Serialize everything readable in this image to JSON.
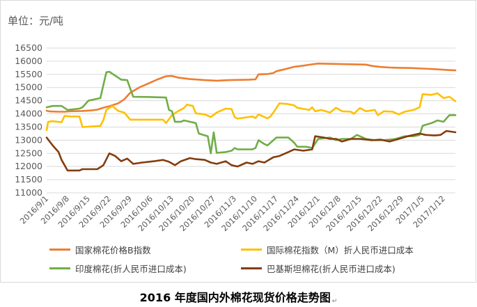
{
  "chart_data": {
    "type": "line",
    "y_unit_label": "单位：元/吨",
    "ylim": [
      11000,
      16500
    ],
    "y_ticks": [
      11000,
      11500,
      12000,
      12500,
      13000,
      13500,
      14000,
      14500,
      15000,
      15500,
      16000,
      16500
    ],
    "grid": "horizontal",
    "legend_position": "bottom",
    "x_range": [
      "2016-09-01",
      "2017-01-16"
    ],
    "x_ticks": [
      "2016/9/1",
      "2016/9/8",
      "2016/9/15",
      "2016/9/22",
      "2016/9/29",
      "2016/10/6",
      "2016/10/13",
      "2016/10/20",
      "2016/10/27",
      "2016/11/3",
      "2016/11/10",
      "2016/11/17",
      "2016/11/24",
      "2016/12/1",
      "2016/12/8",
      "2016/12/15",
      "2016/12/22",
      "2016/12/29",
      "2017/1/5",
      "2017/1/12"
    ],
    "series": [
      {
        "name": "国家棉花价格B指数",
        "color": "#ed7d31",
        "points": [
          [
            "2016-09-01",
            14120
          ],
          [
            "2016-09-02",
            14090
          ],
          [
            "2016-09-05",
            14080
          ],
          [
            "2016-09-07",
            14080
          ],
          [
            "2016-09-09",
            14100
          ],
          [
            "2016-09-13",
            14110
          ],
          [
            "2016-09-16",
            14130
          ],
          [
            "2016-09-18",
            14160
          ],
          [
            "2016-09-20",
            14230
          ],
          [
            "2016-09-22",
            14290
          ],
          [
            "2016-09-25",
            14400
          ],
          [
            "2016-09-27",
            14550
          ],
          [
            "2016-09-29",
            14800
          ],
          [
            "2016-10-02",
            15000
          ],
          [
            "2016-10-05",
            15150
          ],
          [
            "2016-10-08",
            15300
          ],
          [
            "2016-10-11",
            15430
          ],
          [
            "2016-10-13",
            15440
          ],
          [
            "2016-10-15",
            15380
          ],
          [
            "2016-10-19",
            15320
          ],
          [
            "2016-10-24",
            15280
          ],
          [
            "2016-10-28",
            15260
          ],
          [
            "2016-11-01",
            15280
          ],
          [
            "2016-11-04",
            15290
          ],
          [
            "2016-11-08",
            15300
          ],
          [
            "2016-11-10",
            15310
          ],
          [
            "2016-11-11",
            15500
          ],
          [
            "2016-11-14",
            15510
          ],
          [
            "2016-11-16",
            15550
          ],
          [
            "2016-11-17",
            15620
          ],
          [
            "2016-11-20",
            15700
          ],
          [
            "2016-11-23",
            15790
          ],
          [
            "2016-11-26",
            15830
          ],
          [
            "2016-11-29",
            15880
          ],
          [
            "2016-12-01",
            15910
          ],
          [
            "2016-12-05",
            15900
          ],
          [
            "2016-12-09",
            15890
          ],
          [
            "2016-12-13",
            15880
          ],
          [
            "2016-12-17",
            15870
          ],
          [
            "2016-12-19",
            15820
          ],
          [
            "2016-12-22",
            15780
          ],
          [
            "2016-12-25",
            15760
          ],
          [
            "2016-12-28",
            15750
          ],
          [
            "2017-01-01",
            15740
          ],
          [
            "2017-01-05",
            15720
          ],
          [
            "2017-01-09",
            15700
          ],
          [
            "2017-01-13",
            15670
          ],
          [
            "2017-01-16",
            15650
          ]
        ]
      },
      {
        "name": "国际棉花指数（M）折人民币进口成本",
        "color": "#ffc000",
        "points": [
          [
            "2016-09-01",
            13380
          ],
          [
            "2016-09-01.5",
            13700
          ],
          [
            "2016-09-03",
            13720
          ],
          [
            "2016-09-06",
            13680
          ],
          [
            "2016-09-07",
            13920
          ],
          [
            "2016-09-09",
            13900
          ],
          [
            "2016-09-12",
            13900
          ],
          [
            "2016-09-13",
            13500
          ],
          [
            "2016-09-16",
            13520
          ],
          [
            "2016-09-19",
            13540
          ],
          [
            "2016-09-20",
            13760
          ],
          [
            "2016-09-21",
            14150
          ],
          [
            "2016-09-23",
            14300
          ],
          [
            "2016-09-25",
            14110
          ],
          [
            "2016-09-27",
            14050
          ],
          [
            "2016-09-29",
            13780
          ],
          [
            "2016-10-02",
            13780
          ],
          [
            "2016-10-06",
            13780
          ],
          [
            "2016-10-10",
            13780
          ],
          [
            "2016-10-11",
            13650
          ],
          [
            "2016-10-13",
            13950
          ],
          [
            "2016-10-15",
            14100
          ],
          [
            "2016-10-17",
            14220
          ],
          [
            "2016-10-18",
            14350
          ],
          [
            "2016-10-20",
            14300
          ],
          [
            "2016-10-21",
            14020
          ],
          [
            "2016-10-24",
            13980
          ],
          [
            "2016-10-26",
            13880
          ],
          [
            "2016-10-28",
            14050
          ],
          [
            "2016-10-31",
            14200
          ],
          [
            "2016-11-02",
            14180
          ],
          [
            "2016-11-03",
            13880
          ],
          [
            "2016-11-04",
            13820
          ],
          [
            "2016-11-07",
            13870
          ],
          [
            "2016-11-09",
            13900
          ],
          [
            "2016-11-10",
            13840
          ],
          [
            "2016-11-11",
            13980
          ],
          [
            "2016-11-14",
            13830
          ],
          [
            "2016-11-15",
            13900
          ],
          [
            "2016-11-16",
            14050
          ],
          [
            "2016-11-18",
            14400
          ],
          [
            "2016-11-21",
            14370
          ],
          [
            "2016-11-23",
            14320
          ],
          [
            "2016-11-24",
            14230
          ],
          [
            "2016-11-28",
            14150
          ],
          [
            "2016-11-29",
            14250
          ],
          [
            "2016-11-30",
            14100
          ],
          [
            "2016-12-02",
            14150
          ],
          [
            "2016-12-05",
            14050
          ],
          [
            "2016-12-07",
            14230
          ],
          [
            "2016-12-09",
            14100
          ],
          [
            "2016-12-12",
            14080
          ],
          [
            "2016-12-13",
            14000
          ],
          [
            "2016-12-15",
            14220
          ],
          [
            "2016-12-17",
            14100
          ],
          [
            "2016-12-20",
            14150
          ],
          [
            "2016-12-21",
            13950
          ],
          [
            "2016-12-23",
            14100
          ],
          [
            "2016-12-26",
            14080
          ],
          [
            "2016-12-28",
            13980
          ],
          [
            "2016-12-30",
            14080
          ],
          [
            "2017-01-02",
            14150
          ],
          [
            "2017-01-04",
            14250
          ],
          [
            "2017-01-05",
            14750
          ],
          [
            "2017-01-08",
            14720
          ],
          [
            "2017-01-10",
            14780
          ],
          [
            "2017-01-12",
            14600
          ],
          [
            "2017-01-14",
            14650
          ],
          [
            "2017-01-16",
            14480
          ]
        ]
      },
      {
        "name": "印度棉花(折人民币进口成本)",
        "color": "#70ad47",
        "points": [
          [
            "2016-09-01",
            14250
          ],
          [
            "2016-09-03",
            14300
          ],
          [
            "2016-09-06",
            14300
          ],
          [
            "2016-09-08",
            14150
          ],
          [
            "2016-09-12",
            14200
          ],
          [
            "2016-09-13",
            14250
          ],
          [
            "2016-09-15",
            14500
          ],
          [
            "2016-09-19",
            14600
          ],
          [
            "2016-09-21",
            15580
          ],
          [
            "2016-09-22",
            15600
          ],
          [
            "2016-09-26",
            15300
          ],
          [
            "2016-09-28",
            15280
          ],
          [
            "2016-09-30",
            14650
          ],
          [
            "2016-10-05",
            14640
          ],
          [
            "2016-10-11",
            14620
          ],
          [
            "2016-10-12",
            14150
          ],
          [
            "2016-10-13",
            14100
          ],
          [
            "2016-10-14",
            13700
          ],
          [
            "2016-10-16",
            13700
          ],
          [
            "2016-10-17",
            13750
          ],
          [
            "2016-10-19",
            13700
          ],
          [
            "2016-10-21",
            13650
          ],
          [
            "2016-10-22",
            13250
          ],
          [
            "2016-10-25",
            13150
          ],
          [
            "2016-10-26",
            12500
          ],
          [
            "2016-10-27",
            13300
          ],
          [
            "2016-10-28",
            12520
          ],
          [
            "2016-10-31",
            12550
          ],
          [
            "2016-11-02",
            12600
          ],
          [
            "2016-11-03",
            12700
          ],
          [
            "2016-11-04",
            12650
          ],
          [
            "2016-11-07",
            12650
          ],
          [
            "2016-11-09",
            12650
          ],
          [
            "2016-11-10",
            12700
          ],
          [
            "2016-11-11",
            13000
          ],
          [
            "2016-11-13",
            12850
          ],
          [
            "2016-11-14",
            12800
          ],
          [
            "2016-11-17",
            13100
          ],
          [
            "2016-11-21",
            13100
          ],
          [
            "2016-11-23",
            12900
          ],
          [
            "2016-11-24",
            12750
          ],
          [
            "2016-11-27",
            12750
          ],
          [
            "2016-11-29",
            12700
          ],
          [
            "2016-12-01",
            13050
          ],
          [
            "2016-12-05",
            13100
          ],
          [
            "2016-12-07",
            13000
          ],
          [
            "2016-12-09",
            13050
          ],
          [
            "2016-12-12",
            13050
          ],
          [
            "2016-12-14",
            13200
          ],
          [
            "2016-12-17",
            13050
          ],
          [
            "2016-12-20",
            13000
          ],
          [
            "2016-12-23",
            13000
          ],
          [
            "2016-12-27",
            13050
          ],
          [
            "2016-12-30",
            13150
          ],
          [
            "2017-01-02",
            13150
          ],
          [
            "2017-01-04",
            13200
          ],
          [
            "2017-01-05",
            13550
          ],
          [
            "2017-01-08",
            13650
          ],
          [
            "2017-01-10",
            13750
          ],
          [
            "2017-01-12",
            13700
          ],
          [
            "2017-01-14",
            13950
          ],
          [
            "2017-01-16",
            13950
          ]
        ]
      },
      {
        "name": "巴基斯坦棉花(折人民币进口成本)",
        "color": "#843c0c",
        "points": [
          [
            "2016-09-01",
            13100
          ],
          [
            "2016-09-03",
            12800
          ],
          [
            "2016-09-05",
            12550
          ],
          [
            "2016-09-06",
            12250
          ],
          [
            "2016-09-08",
            11850
          ],
          [
            "2016-09-12",
            11850
          ],
          [
            "2016-09-13",
            11900
          ],
          [
            "2016-09-18",
            11900
          ],
          [
            "2016-09-20",
            12050
          ],
          [
            "2016-09-22",
            12500
          ],
          [
            "2016-09-24",
            12400
          ],
          [
            "2016-09-26",
            12200
          ],
          [
            "2016-09-28",
            12300
          ],
          [
            "2016-09-30",
            12100
          ],
          [
            "2016-10-03",
            12150
          ],
          [
            "2016-10-07",
            12200
          ],
          [
            "2016-10-10",
            12250
          ],
          [
            "2016-10-12",
            12180
          ],
          [
            "2016-10-14",
            12050
          ],
          [
            "2016-10-16",
            12200
          ],
          [
            "2016-10-19",
            12320
          ],
          [
            "2016-10-21",
            12280
          ],
          [
            "2016-10-24",
            12250
          ],
          [
            "2016-10-26",
            12150
          ],
          [
            "2016-10-28",
            12100
          ],
          [
            "2016-10-31",
            12200
          ],
          [
            "2016-11-02",
            12050
          ],
          [
            "2016-11-04",
            12000
          ],
          [
            "2016-11-07",
            12150
          ],
          [
            "2016-11-09",
            12100
          ],
          [
            "2016-11-11",
            12200
          ],
          [
            "2016-11-13",
            12150
          ],
          [
            "2016-11-16",
            12350
          ],
          [
            "2016-11-18",
            12400
          ],
          [
            "2016-11-21",
            12550
          ],
          [
            "2016-11-23",
            12650
          ],
          [
            "2016-11-26",
            12600
          ],
          [
            "2016-11-29",
            12650
          ],
          [
            "2016-11-30",
            13150
          ],
          [
            "2016-12-03",
            13100
          ],
          [
            "2016-12-05",
            13050
          ],
          [
            "2016-12-07",
            13050
          ],
          [
            "2016-12-09",
            12950
          ],
          [
            "2016-12-12",
            13050
          ],
          [
            "2016-12-15",
            13050
          ],
          [
            "2016-12-19",
            13000
          ],
          [
            "2016-12-22",
            13020
          ],
          [
            "2016-12-25",
            12950
          ],
          [
            "2016-12-28",
            13050
          ],
          [
            "2016-12-31",
            13150
          ],
          [
            "2017-01-04",
            13250
          ],
          [
            "2017-01-06",
            13200
          ],
          [
            "2017-01-09",
            13180
          ],
          [
            "2017-01-11",
            13200
          ],
          [
            "2017-01-13",
            13350
          ],
          [
            "2017-01-16",
            13300
          ]
        ]
      }
    ]
  },
  "caption": "2016 年度国内外棉花现货价格走势图"
}
